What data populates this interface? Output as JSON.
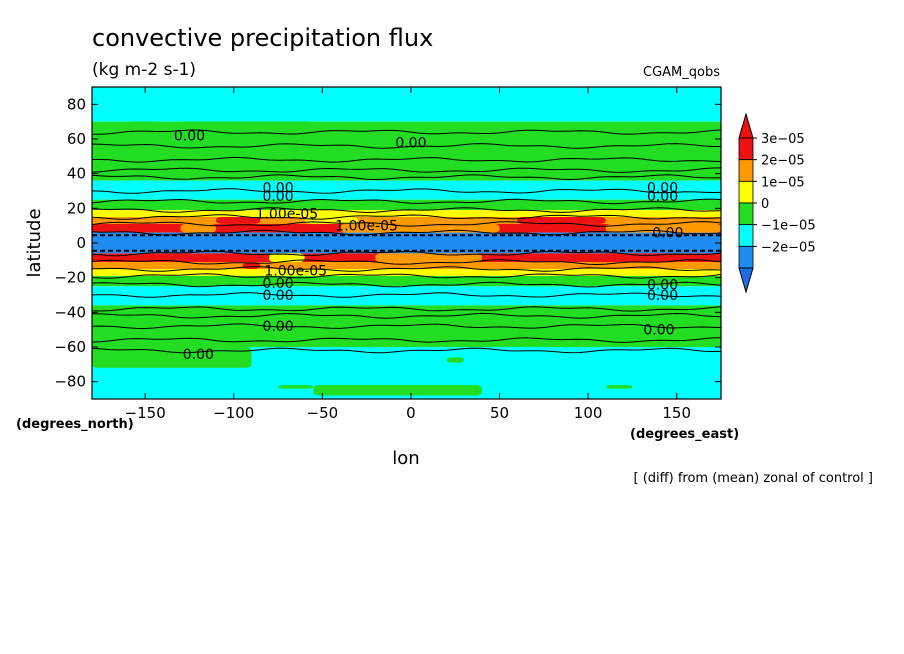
{
  "chart_data": {
    "type": "heatmap",
    "title": "convective precipitation flux",
    "subtitle": "(kg m-2 s-1)",
    "dataset_label": "CGAM_qobs",
    "xlabel": "lon",
    "ylabel": "latitude",
    "x_unit": "(degrees_east)",
    "y_unit": "(degrees_north)",
    "footnote": "[ (diff) from (mean) zonal of control ]",
    "xlim": [
      -180,
      175
    ],
    "ylim": [
      -90,
      90
    ],
    "x_ticks": [
      -150,
      -100,
      -50,
      0,
      50,
      100,
      150
    ],
    "x_tick_labels": [
      "−150",
      "−100",
      "−50",
      "0",
      "50",
      "100",
      "150"
    ],
    "y_ticks": [
      -80,
      -60,
      -40,
      -20,
      0,
      20,
      40,
      60,
      80
    ],
    "y_tick_labels": [
      "−80",
      "−60",
      "−40",
      "−20",
      "0",
      "20",
      "40",
      "60",
      "80"
    ],
    "colorbar": {
      "levels": [
        -2e-05,
        -1e-05,
        0,
        1e-05,
        2e-05,
        3e-05
      ],
      "labels": [
        "−2e−05",
        "−1e−05",
        "0",
        "1e−05",
        "2e−05",
        "3e−05"
      ],
      "colors": [
        "#1e8cf0",
        "#00ffff",
        "#22dd22",
        "#ffff00",
        "#ff9900",
        "#ee1111"
      ],
      "under_color": "#1e6ee6",
      "over_color": "#ee1111"
    },
    "zonal_bands": [
      {
        "lat_min": 70,
        "lat_max": 90,
        "bin": 1
      },
      {
        "lat_min": 36,
        "lat_max": 70,
        "bin": 2
      },
      {
        "lat_min": 25,
        "lat_max": 36,
        "bin": 1
      },
      {
        "lat_min": 19,
        "lat_max": 25,
        "bin": 2
      },
      {
        "lat_min": 15,
        "lat_max": 19,
        "bin": 3
      },
      {
        "lat_min": 11,
        "lat_max": 15,
        "bin": 4
      },
      {
        "lat_min": 6,
        "lat_max": 11,
        "bin": 5
      },
      {
        "lat_min": -6,
        "lat_max": 6,
        "bin": 0
      },
      {
        "lat_min": -11,
        "lat_max": -6,
        "bin": 5
      },
      {
        "lat_min": -15,
        "lat_max": -11,
        "bin": 4
      },
      {
        "lat_min": -19,
        "lat_max": -15,
        "bin": 3
      },
      {
        "lat_min": -25,
        "lat_max": -19,
        "bin": 2
      },
      {
        "lat_min": -36,
        "lat_max": -25,
        "bin": 1
      },
      {
        "lat_min": -60,
        "lat_max": -36,
        "bin": 2
      },
      {
        "lat_min": -90,
        "lat_max": -60,
        "bin": 1
      }
    ],
    "patches": [
      {
        "lon_min": -180,
        "lon_max": -90,
        "lat_min": -72,
        "lat_max": -60,
        "bin": 2
      },
      {
        "lon_min": -120,
        "lon_max": -90,
        "lat_min": -66,
        "lat_max": -60,
        "bin": 2
      },
      {
        "lon_min": -130,
        "lon_max": -55,
        "lat_min": 62,
        "lat_max": 70,
        "bin": 2
      },
      {
        "lon_min": -160,
        "lon_max": -140,
        "lat_min": 64,
        "lat_max": 70,
        "bin": 2
      },
      {
        "lon_min": -130,
        "lon_max": -110,
        "lat_min": 6,
        "lat_max": 11,
        "bin": 4
      },
      {
        "lon_min": -40,
        "lon_max": 50,
        "lat_min": 6,
        "lat_max": 11,
        "bin": 4
      },
      {
        "lon_min": 110,
        "lon_max": 175,
        "lat_min": 6,
        "lat_max": 11,
        "bin": 4
      },
      {
        "lon_min": -110,
        "lon_max": -85,
        "lat_min": 11,
        "lat_max": 15,
        "bin": 5
      },
      {
        "lon_min": -60,
        "lon_max": -30,
        "lat_min": 11,
        "lat_max": 15,
        "bin": 3
      },
      {
        "lon_min": 60,
        "lon_max": 110,
        "lat_min": 11,
        "lat_max": 15,
        "bin": 5
      },
      {
        "lon_min": -120,
        "lon_max": -95,
        "lat_min": -11,
        "lat_max": -6,
        "bin": 5
      },
      {
        "lon_min": -95,
        "lon_max": -85,
        "lat_min": -15,
        "lat_max": -11,
        "bin": 5
      },
      {
        "lon_min": -80,
        "lon_max": -60,
        "lat_min": -11,
        "lat_max": -6,
        "bin": 3
      },
      {
        "lon_min": -20,
        "lon_max": 40,
        "lat_min": -11,
        "lat_max": -6,
        "bin": 4
      },
      {
        "lon_min": 100,
        "lon_max": 150,
        "lat_min": -11,
        "lat_max": -6,
        "bin": 5
      },
      {
        "lon_min": -55,
        "lon_max": 40,
        "lat_min": -88,
        "lat_max": -82,
        "bin": 2
      },
      {
        "lon_min": 20,
        "lon_max": 30,
        "lat_min": -69,
        "lat_max": -66,
        "bin": 2
      },
      {
        "lon_min": 110,
        "lon_max": 125,
        "lat_min": -84,
        "lat_max": -82,
        "bin": 2
      },
      {
        "lon_min": -75,
        "lon_max": -55,
        "lat_min": -84,
        "lat_max": -82,
        "bin": 2
      }
    ],
    "contour_lats": [
      64,
      56,
      48,
      42,
      38,
      30,
      24,
      19,
      15,
      11,
      6,
      -6,
      -11,
      -15,
      -19,
      -24,
      -30,
      -38,
      -42,
      -48,
      -56,
      -62
    ],
    "dashed_lats": [
      4.5,
      -4.5
    ],
    "contour_labels": [
      {
        "text": "0.00",
        "lon": -125,
        "lat": 62
      },
      {
        "text": "0.00",
        "lon": 0,
        "lat": 58
      },
      {
        "text": "0.00",
        "lon": -75,
        "lat": 32
      },
      {
        "text": "0.00",
        "lon": -75,
        "lat": 27
      },
      {
        "text": "0.00",
        "lon": 142,
        "lat": 32
      },
      {
        "text": "0.00",
        "lon": 142,
        "lat": 27
      },
      {
        "text": "1.00e-05",
        "lon": -70,
        "lat": 17
      },
      {
        "text": "1.00e-05",
        "lon": -25,
        "lat": 10
      },
      {
        "text": "0.00",
        "lon": 145,
        "lat": 6
      },
      {
        "text": "1.00e-05",
        "lon": -65,
        "lat": -16
      },
      {
        "text": "0.00",
        "lon": -75,
        "lat": -23
      },
      {
        "text": "0.00",
        "lon": -75,
        "lat": -30
      },
      {
        "text": "0.00",
        "lon": 142,
        "lat": -24
      },
      {
        "text": "0.00",
        "lon": 142,
        "lat": -30
      },
      {
        "text": "0.00",
        "lon": -75,
        "lat": -48
      },
      {
        "text": "0.00",
        "lon": 140,
        "lat": -50
      },
      {
        "text": "0.00",
        "lon": -120,
        "lat": -64
      }
    ]
  }
}
